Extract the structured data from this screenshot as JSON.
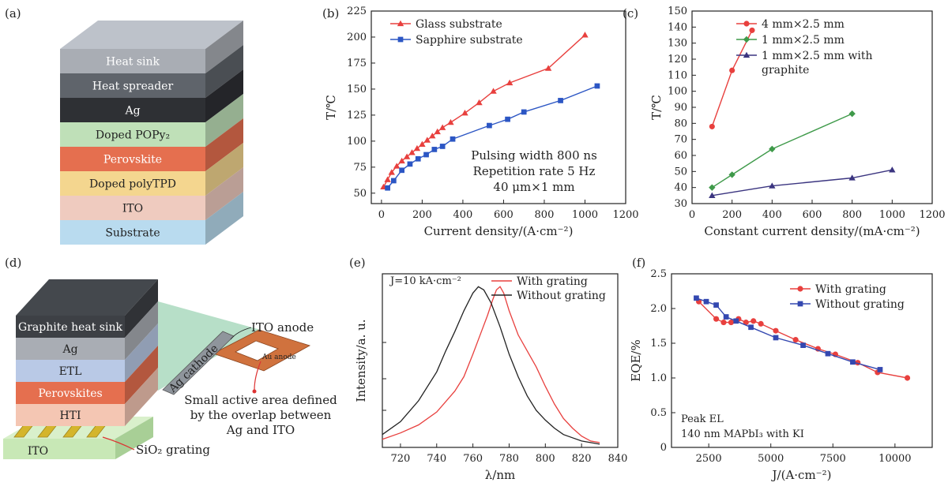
{
  "panel_labels": [
    "(a)",
    "(b)",
    "(c)",
    "(d)",
    "(e)",
    "(f)"
  ],
  "stack_a": {
    "layers": [
      {
        "label": "Heat sink",
        "color": "#a9adb4"
      },
      {
        "label": "Heat spreader",
        "color": "#5f646b"
      },
      {
        "label": "Ag",
        "color": "#2e3034"
      },
      {
        "label": "Doped POPy₂",
        "color": "#bfe0b8"
      },
      {
        "label": "Perovskite",
        "color": "#e56f4f"
      },
      {
        "label": "Doped polyTPD",
        "color": "#f4d68f"
      },
      {
        "label": "ITO",
        "color": "#efcbbf"
      },
      {
        "label": "Substrate",
        "color": "#b9dbef"
      }
    ]
  },
  "stack_d": {
    "layers": [
      {
        "label": "Graphite heat sink",
        "color": "#3d4045"
      },
      {
        "label": "Ag",
        "color": "#a9adb4"
      },
      {
        "label": "ETL",
        "color": "#b9c9e6"
      },
      {
        "label": "Perovskites",
        "color": "#e56f4f"
      },
      {
        "label": "HTI",
        "color": "#f4c6b3"
      }
    ],
    "base_label": "ITO",
    "base_color": "#c8e8b6",
    "grating_label": "SiO₂ grating",
    "ito_anode_label": "ITO anode",
    "ag_cathode_label": "Ag cathode",
    "au_anode_label": "Au anode",
    "caption_lines": [
      "Small active area defined",
      "by the overlap between",
      "Ag and ITO"
    ]
  },
  "chart_data": [
    {
      "panel": "(b)",
      "type": "line",
      "xlabel": "Current density/(A·cm⁻²)",
      "ylabel": "T/℃",
      "xlim": [
        -50,
        1200
      ],
      "ylim": [
        40,
        225
      ],
      "xticks": [
        0,
        200,
        400,
        600,
        800,
        1000,
        1200
      ],
      "yticks": [
        50,
        75,
        100,
        125,
        150,
        175,
        200,
        225
      ],
      "legend_position": "top-left",
      "annotation_lines": [
        "Pulsing width 800 ns",
        "Repetition rate 5 Hz",
        "40 μm×1 mm"
      ],
      "series": [
        {
          "name": "Glass substrate",
          "color": "#e8403e",
          "marker": "triangle",
          "x": [
            10,
            30,
            50,
            75,
            100,
            125,
            150,
            175,
            200,
            225,
            250,
            275,
            300,
            340,
            410,
            480,
            550,
            630,
            820,
            1000
          ],
          "y": [
            56,
            63,
            70,
            76,
            81,
            85,
            89,
            93,
            97,
            101,
            105,
            109,
            113,
            118,
            127,
            137,
            148,
            156,
            170,
            202
          ]
        },
        {
          "name": "Sapphire substrate",
          "color": "#2c56c4",
          "marker": "square",
          "x": [
            30,
            60,
            100,
            140,
            180,
            220,
            260,
            300,
            350,
            530,
            620,
            700,
            880,
            1060
          ],
          "y": [
            55,
            62,
            72,
            78,
            83,
            87,
            92,
            95,
            102,
            115,
            121,
            128,
            139,
            153
          ]
        }
      ]
    },
    {
      "panel": "(c)",
      "type": "line",
      "xlabel": "Constant current density/(mA·cm⁻²)",
      "ylabel": "T/℃",
      "xlim": [
        0,
        1200
      ],
      "ylim": [
        30,
        150
      ],
      "xticks": [
        0,
        200,
        400,
        600,
        800,
        1000,
        1200
      ],
      "yticks": [
        30,
        40,
        50,
        60,
        70,
        80,
        90,
        100,
        110,
        120,
        130,
        140,
        150
      ],
      "legend_position": "top",
      "series": [
        {
          "name": "4 mm×2.5 mm",
          "color": "#e8403e",
          "marker": "circle",
          "x": [
            100,
            200,
            300
          ],
          "y": [
            78,
            113,
            138
          ]
        },
        {
          "name": "1 mm×2.5 mm",
          "color": "#3f9a4a",
          "marker": "diamond",
          "x": [
            100,
            200,
            400,
            800
          ],
          "y": [
            40,
            48,
            64,
            86
          ]
        },
        {
          "name": "1 mm×2.5 mm with graphite",
          "name_lines": [
            "1 mm×2.5 mm with",
            "graphite"
          ],
          "color": "#3b3580",
          "marker": "triangle",
          "x": [
            100,
            400,
            800,
            1000
          ],
          "y": [
            35,
            41,
            46,
            51
          ]
        }
      ]
    },
    {
      "panel": "(e)",
      "type": "line",
      "xlabel": "λ/nm",
      "ylabel": "Intensity/a. u.",
      "xlim": [
        710,
        840
      ],
      "ylim": [
        0,
        1.08
      ],
      "xticks": [
        720,
        740,
        760,
        780,
        800,
        820,
        840
      ],
      "legend_position": "top-right",
      "annotation": "J=10 kA·cm⁻²",
      "series": [
        {
          "name": "With grating",
          "color": "#e8403e",
          "x": [
            710,
            720,
            730,
            740,
            750,
            755,
            760,
            765,
            768,
            771,
            773,
            775,
            777,
            780,
            785,
            790,
            795,
            800,
            805,
            810,
            815,
            820,
            825,
            830
          ],
          "y": [
            0.05,
            0.09,
            0.14,
            0.22,
            0.35,
            0.44,
            0.58,
            0.73,
            0.82,
            0.92,
            0.98,
            1.0,
            0.96,
            0.85,
            0.7,
            0.6,
            0.5,
            0.38,
            0.27,
            0.18,
            0.12,
            0.07,
            0.04,
            0.03
          ]
        },
        {
          "name": "Without grating",
          "color": "#222222",
          "x": [
            710,
            720,
            730,
            740,
            745,
            750,
            755,
            760,
            763,
            766,
            770,
            775,
            780,
            785,
            790,
            795,
            800,
            805,
            810,
            815,
            820,
            825,
            830
          ],
          "y": [
            0.08,
            0.16,
            0.29,
            0.47,
            0.6,
            0.72,
            0.85,
            0.96,
            1.0,
            0.98,
            0.9,
            0.75,
            0.58,
            0.44,
            0.32,
            0.23,
            0.17,
            0.12,
            0.08,
            0.06,
            0.04,
            0.03,
            0.02
          ]
        }
      ]
    },
    {
      "panel": "(f)",
      "type": "line",
      "xlabel": "J/(A·cm⁻²)",
      "ylabel": "EQE/%",
      "xlim": [
        1000,
        11500
      ],
      "ylim": [
        0,
        2.5
      ],
      "xticks": [
        2500,
        5000,
        7500,
        10000
      ],
      "yticks": [
        0,
        0.5,
        1.0,
        1.5,
        2.0,
        2.5
      ],
      "ytick_labels": [
        "0",
        "0.5",
        "1.0",
        "1.5",
        "2.0",
        "2.5"
      ],
      "legend_position": "top-right",
      "annotation_lines": [
        "Peak EL",
        "140 nm MAPbI₃ with KI"
      ],
      "series": [
        {
          "name": "With grating",
          "color": "#e8403e",
          "marker": "circle",
          "x": [
            2100,
            2800,
            3100,
            3400,
            3700,
            4000,
            4300,
            4600,
            5200,
            6000,
            6900,
            7600,
            8500,
            9300,
            10500
          ],
          "y": [
            2.1,
            1.85,
            1.8,
            1.8,
            1.85,
            1.8,
            1.82,
            1.78,
            1.68,
            1.55,
            1.42,
            1.34,
            1.22,
            1.08,
            1.0
          ]
        },
        {
          "name": "Without grating",
          "color": "#3448b0",
          "marker": "square",
          "x": [
            2000,
            2400,
            2800,
            3200,
            3600,
            4200,
            5200,
            6300,
            7300,
            8300,
            9400
          ],
          "y": [
            2.15,
            2.1,
            2.05,
            1.88,
            1.82,
            1.73,
            1.58,
            1.47,
            1.35,
            1.23,
            1.12
          ]
        }
      ]
    }
  ]
}
